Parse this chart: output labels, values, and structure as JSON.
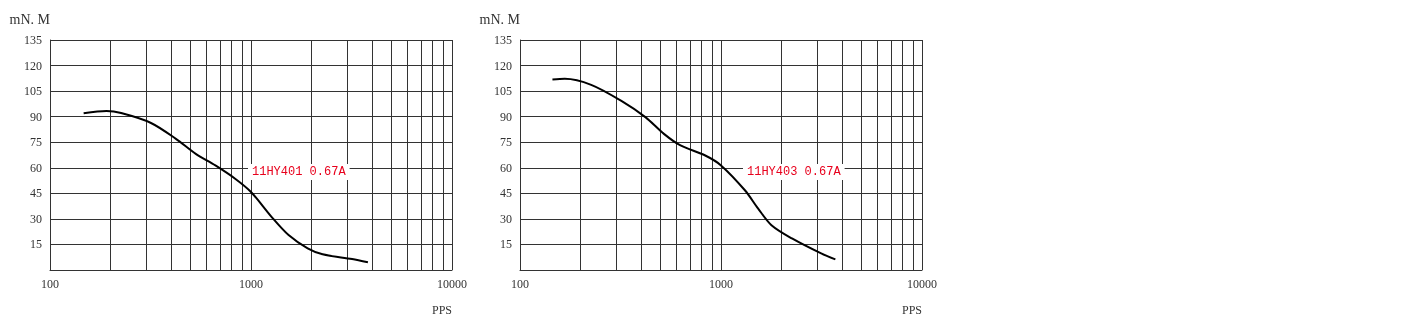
{
  "chart_data": [
    {
      "type": "line",
      "xlabel": "PPS",
      "ylabel": "mN. M",
      "log": "x",
      "xlim": [
        100,
        10000
      ],
      "xticks": [
        100,
        1000,
        10000
      ],
      "ylim": [
        0,
        135
      ],
      "yticks": [
        {
          "value": 0,
          "label": null
        },
        15,
        30,
        45,
        60,
        75,
        90,
        105,
        120,
        135
      ],
      "grid": true,
      "marker": "none",
      "line_style": "solid",
      "series": [
        {
          "color": "#000000",
          "x": [
            147,
            191,
            226,
            318,
            423,
            531,
            665,
            834,
            1000,
            1265,
            1538,
            1914,
            2271,
            3184,
            3817
          ],
          "values": [
            92,
            93.3,
            92.1,
            86.3,
            77,
            68.2,
            61.4,
            53.6,
            45.8,
            31.2,
            20.5,
            12.7,
            9.2,
            6.4,
            4.5
          ]
        }
      ],
      "annotations": [
        "11HY401 0.67A"
      ]
    },
    {
      "type": "line",
      "xlabel": "PPS",
      "ylabel": "mN. M",
      "log": "x",
      "xlim": [
        100,
        10000
      ],
      "xticks": [
        100,
        1000,
        10000
      ],
      "ylim": [
        0,
        135
      ],
      "yticks": [
        {
          "value": 0,
          "label": null
        },
        15,
        30,
        45,
        60,
        75,
        90,
        105,
        120,
        135
      ],
      "grid": true,
      "marker": "none",
      "line_style": "solid",
      "series": [
        {
          "color": "#000000",
          "x": [
            145,
            167,
            226,
            318,
            422,
            520,
            629,
            835,
            1000,
            1315,
            1531,
            1783,
            2255,
            3150,
            3707
          ],
          "values": [
            111.8,
            112.2,
            108.7,
            99.4,
            89.6,
            79.9,
            73.1,
            67.2,
            61.4,
            46.8,
            36,
            26.3,
            18.5,
            9.7,
            6.2
          ]
        }
      ],
      "annotations": [
        "11HY403 0.67A"
      ]
    }
  ]
}
